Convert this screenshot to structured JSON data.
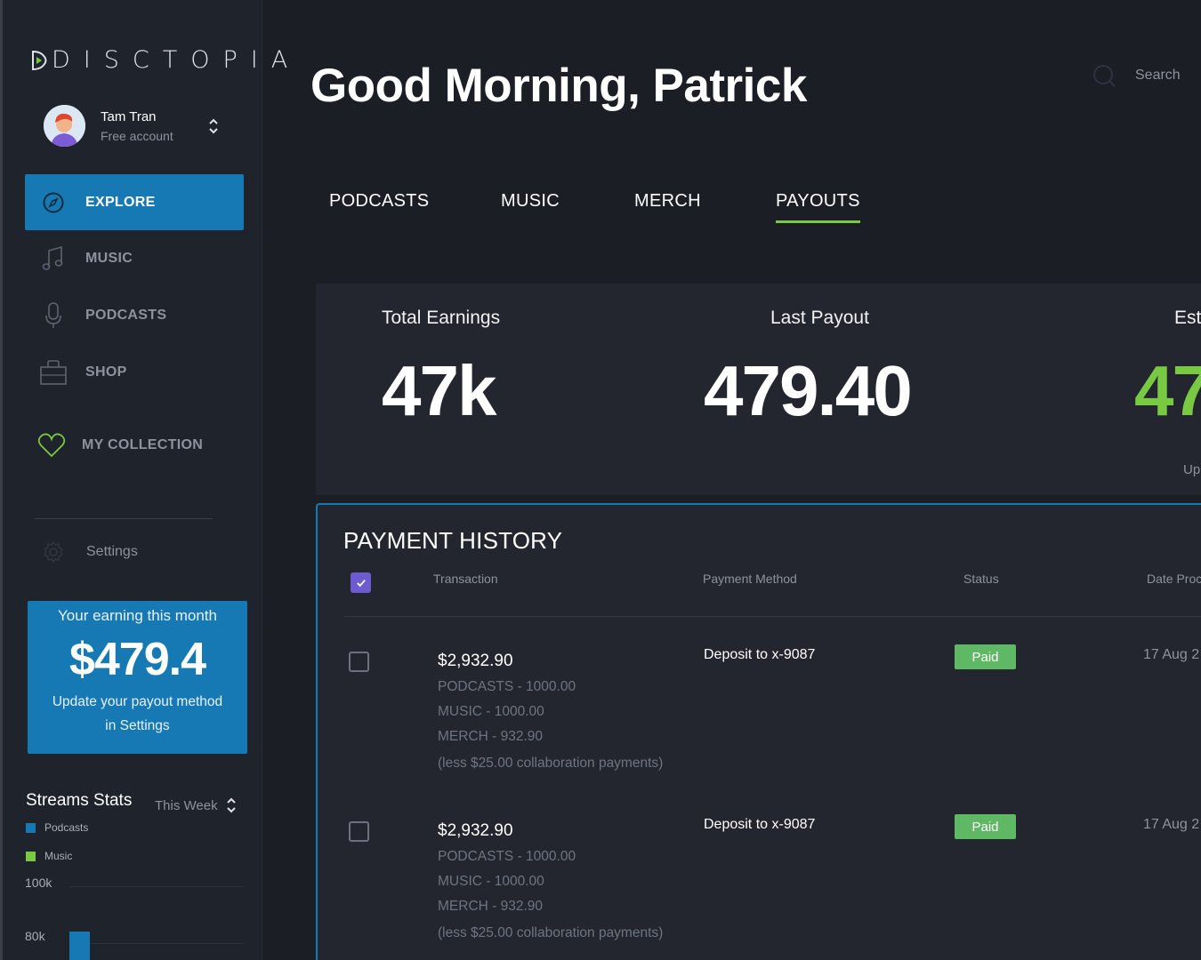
{
  "brand": {
    "name": "DISCTOPIA"
  },
  "profile": {
    "name": "Tam Tran",
    "plan": "Free account"
  },
  "sidebar": {
    "items": [
      {
        "label": "EXPLORE",
        "icon": "compass-icon",
        "active": true
      },
      {
        "label": "MUSIC",
        "icon": "music-note-icon"
      },
      {
        "label": "PODCASTS",
        "icon": "microphone-icon"
      },
      {
        "label": "SHOP",
        "icon": "shopping-bag-icon"
      },
      {
        "label": "MY COLLECTION",
        "icon": "heart-icon"
      }
    ],
    "settings_label": "Settings"
  },
  "earning_card": {
    "title": "Your earning this month",
    "value": "$479.4",
    "note_line1": "Update your payout method",
    "note_line2": "in Settings"
  },
  "streams": {
    "title": "Streams Stats",
    "range": "This Week",
    "legend": [
      {
        "name": "Podcasts",
        "color": "#1679b4"
      },
      {
        "name": "Music",
        "color": "#7ac943"
      }
    ],
    "axis": [
      "100k",
      "80k"
    ]
  },
  "chart_data": {
    "type": "bar",
    "title": "Streams Stats",
    "series": [
      {
        "name": "Podcasts",
        "values": [
          84
        ]
      }
    ],
    "ylim": [
      80,
      100
    ],
    "yticks": [
      "100k",
      "80k"
    ]
  },
  "header": {
    "greeting": "Good Morning, Patrick",
    "search_label": "Search"
  },
  "tabs": [
    {
      "label": "PODCASTS"
    },
    {
      "label": "MUSIC"
    },
    {
      "label": "MERCH"
    },
    {
      "label": "PAYOUTS",
      "active": true
    }
  ],
  "stats": {
    "total_earnings": {
      "title": "Total Earnings",
      "value": "47k"
    },
    "last_payout": {
      "title": "Last Payout",
      "value": "479.40"
    },
    "estimated": {
      "title": "Est",
      "value": "47",
      "sub": "Up"
    }
  },
  "history": {
    "title": "PAYMENT HISTORY",
    "columns": [
      "Transaction",
      "Payment Method",
      "Status",
      "Date Proc"
    ],
    "rows": [
      {
        "amount": "$2,932.90",
        "lines": [
          "PODCASTS - 1000.00",
          "MUSIC - 1000.00",
          "MERCH - 932.90",
          "(less $25.00 collaboration payments)"
        ],
        "method": "Deposit to x-9087",
        "status": "Paid",
        "date": "17 Aug 2"
      },
      {
        "amount": "$2,932.90",
        "lines": [
          "PODCASTS - 1000.00",
          "MUSIC - 1000.00",
          "MERCH - 932.90",
          "(less $25.00 collaboration payments)"
        ],
        "method": "Deposit to x-9087",
        "status": "Paid",
        "date": "17 Aug 2"
      }
    ]
  },
  "colors": {
    "accent": "#1679b4",
    "green": "#7ac943",
    "paid": "#5fb863",
    "check": "#6d5bd0"
  }
}
